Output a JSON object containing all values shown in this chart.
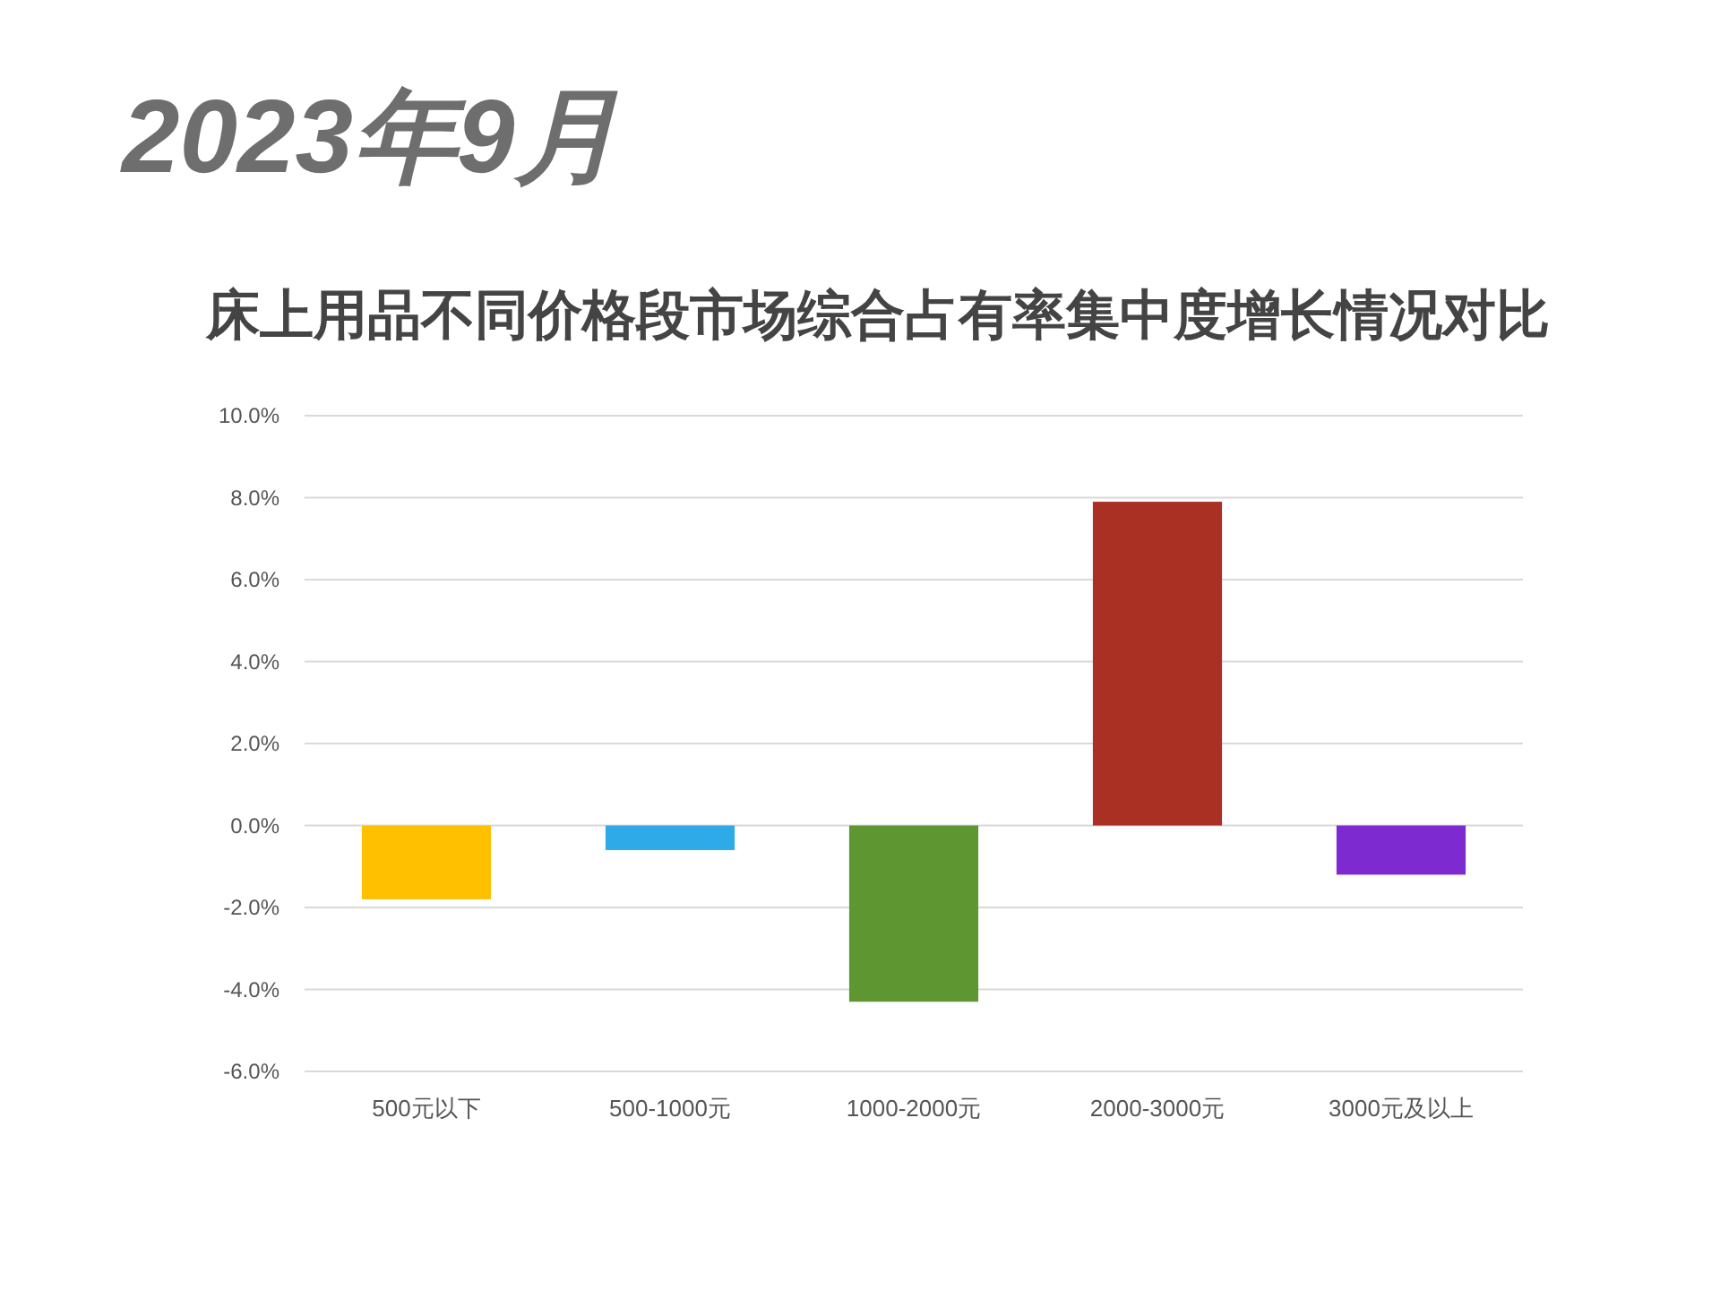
{
  "chart_data": {
    "type": "bar",
    "title": "床上用品不同价格段市场综合占有率集中度增长情况对比",
    "subtitle": "2023年9月",
    "categories": [
      "500元以下",
      "500-1000元",
      "1000-2000元",
      "2000-3000元",
      "3000元及以上"
    ],
    "values": [
      -1.8,
      -0.6,
      -4.3,
      7.9,
      -1.2
    ],
    "colors": [
      "#ffc000",
      "#2eaae8",
      "#5e9732",
      "#a93023",
      "#7d2ad0"
    ],
    "ylim": [
      -6,
      10
    ],
    "yticks": [
      {
        "value": -6,
        "label": "-6.0%"
      },
      {
        "value": -4,
        "label": "-4.0%"
      },
      {
        "value": -2,
        "label": "-2.0%"
      },
      {
        "value": 0,
        "label": "0.0%"
      },
      {
        "value": 2,
        "label": "2.0%"
      },
      {
        "value": 4,
        "label": "4.0%"
      },
      {
        "value": 6,
        "label": "6.0%"
      },
      {
        "value": 8,
        "label": "8.0%"
      },
      {
        "value": 10,
        "label": "10.0%"
      }
    ],
    "grid": "y"
  }
}
